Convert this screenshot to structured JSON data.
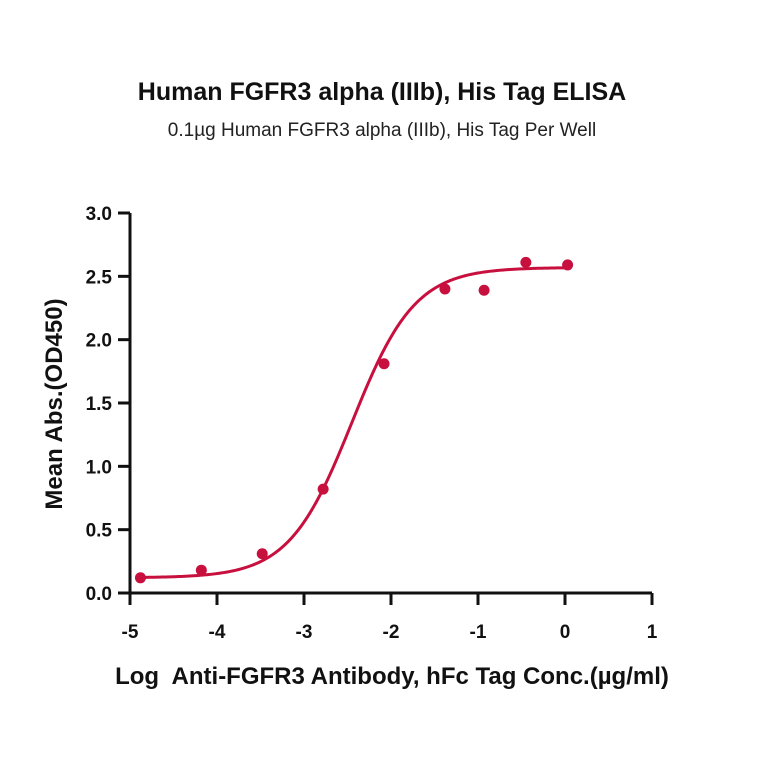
{
  "chart_data": {
    "type": "scatter",
    "title": "Human FGFR3 alpha (IIIb), His Tag ELISA",
    "subtitle": "0.1µg Human FGFR3 alpha (IIIb), His Tag Per Well",
    "xlabel": "Log  Anti-FGFR3 Antibody, hFc Tag Conc.(µg/ml)",
    "ylabel": "Mean Abs.(OD450)",
    "xlim": [
      -5,
      1
    ],
    "ylim": [
      0,
      3
    ],
    "xticks": [
      "-5",
      "-4",
      "-3",
      "-2",
      "-1",
      "0",
      "1"
    ],
    "yticks": [
      "0.0",
      "0.5",
      "1.0",
      "1.5",
      "2.0",
      "2.5",
      "3.0"
    ],
    "grid": false,
    "legend": "none",
    "series": [
      {
        "points": [
          {
            "x": -4.88,
            "y": 0.12
          },
          {
            "x": -4.18,
            "y": 0.18
          },
          {
            "x": -3.48,
            "y": 0.31
          },
          {
            "x": -2.78,
            "y": 0.82
          },
          {
            "x": -2.08,
            "y": 1.81
          },
          {
            "x": -1.38,
            "y": 2.4
          },
          {
            "x": -0.93,
            "y": 2.39
          },
          {
            "x": -0.45,
            "y": 2.61
          },
          {
            "x": 0.03,
            "y": 2.59
          }
        ],
        "fit": {
          "model": "4PL",
          "bottom": 0.12,
          "top": 2.57,
          "logEC50": -2.45,
          "hill": 1.2,
          "x_range": [
            -4.88,
            0.03
          ]
        }
      }
    ],
    "color": "#c8103f"
  }
}
